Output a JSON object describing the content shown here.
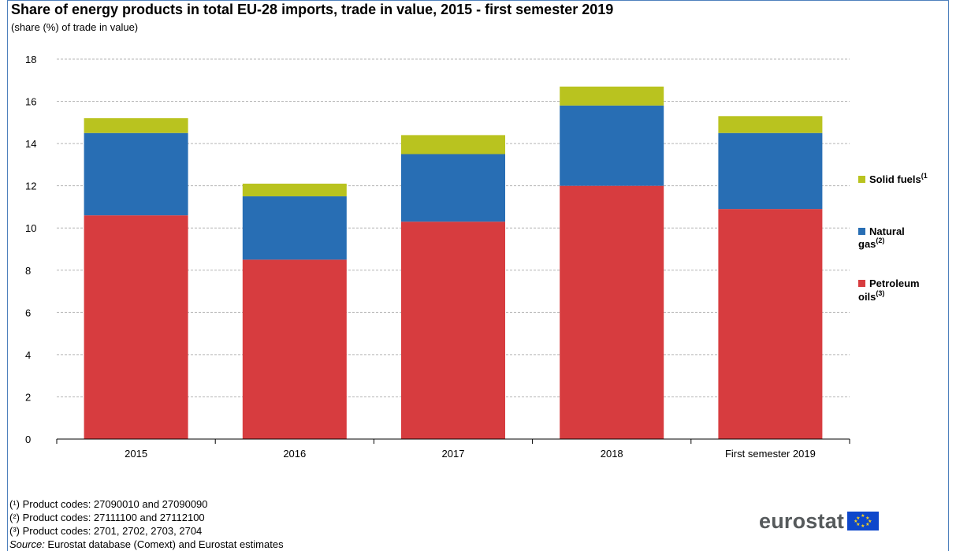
{
  "chart_data": {
    "type": "bar",
    "stacked": true,
    "title": "Share of energy products in total EU-28 imports, trade in value, 2015 - first semester 2019",
    "subtitle": "(share (%) of trade in value)",
    "categories": [
      "2015",
      "2016",
      "2017",
      "2018",
      "First semester 2019"
    ],
    "ylim": [
      0,
      18
    ],
    "yticks": [
      0,
      2,
      4,
      6,
      8,
      10,
      12,
      14,
      16,
      18
    ],
    "grid": true,
    "legend_position": "right",
    "series": [
      {
        "name": "Petroleum oils",
        "sup": "(3)",
        "color": "#d73c3f",
        "values": [
          10.6,
          8.5,
          10.3,
          12.0,
          10.9
        ]
      },
      {
        "name": "Natural gas",
        "sup": "(2)",
        "color": "#286eb4",
        "values": [
          3.9,
          3.0,
          3.2,
          3.8,
          3.6
        ]
      },
      {
        "name": "Solid fuels",
        "sup": "(1",
        "color": "#b9c31f",
        "values": [
          0.7,
          0.6,
          0.9,
          0.9,
          0.8
        ]
      }
    ]
  },
  "legend": {
    "solid_fuels": {
      "line1": "Solid fuels",
      "sup": "(1"
    },
    "natural_gas": {
      "line1": "Natural",
      "line2": "gas",
      "sup": "(2)"
    },
    "petroleum_oils": {
      "line1": "Petroleum",
      "line2": "oils",
      "sup": "(3)"
    }
  },
  "notes": {
    "note1": "(¹) Product codes: 27090010 and 27090090",
    "note2": "(²) Product codes: 27111100 and 27112100",
    "note3": "(³) Product codes: 2701, 2702, 2703, 2704",
    "source_label": "Source:",
    "source_text": " Eurostat database (Comext) and Eurostat estimates"
  },
  "logo": {
    "text": "eurostat"
  }
}
